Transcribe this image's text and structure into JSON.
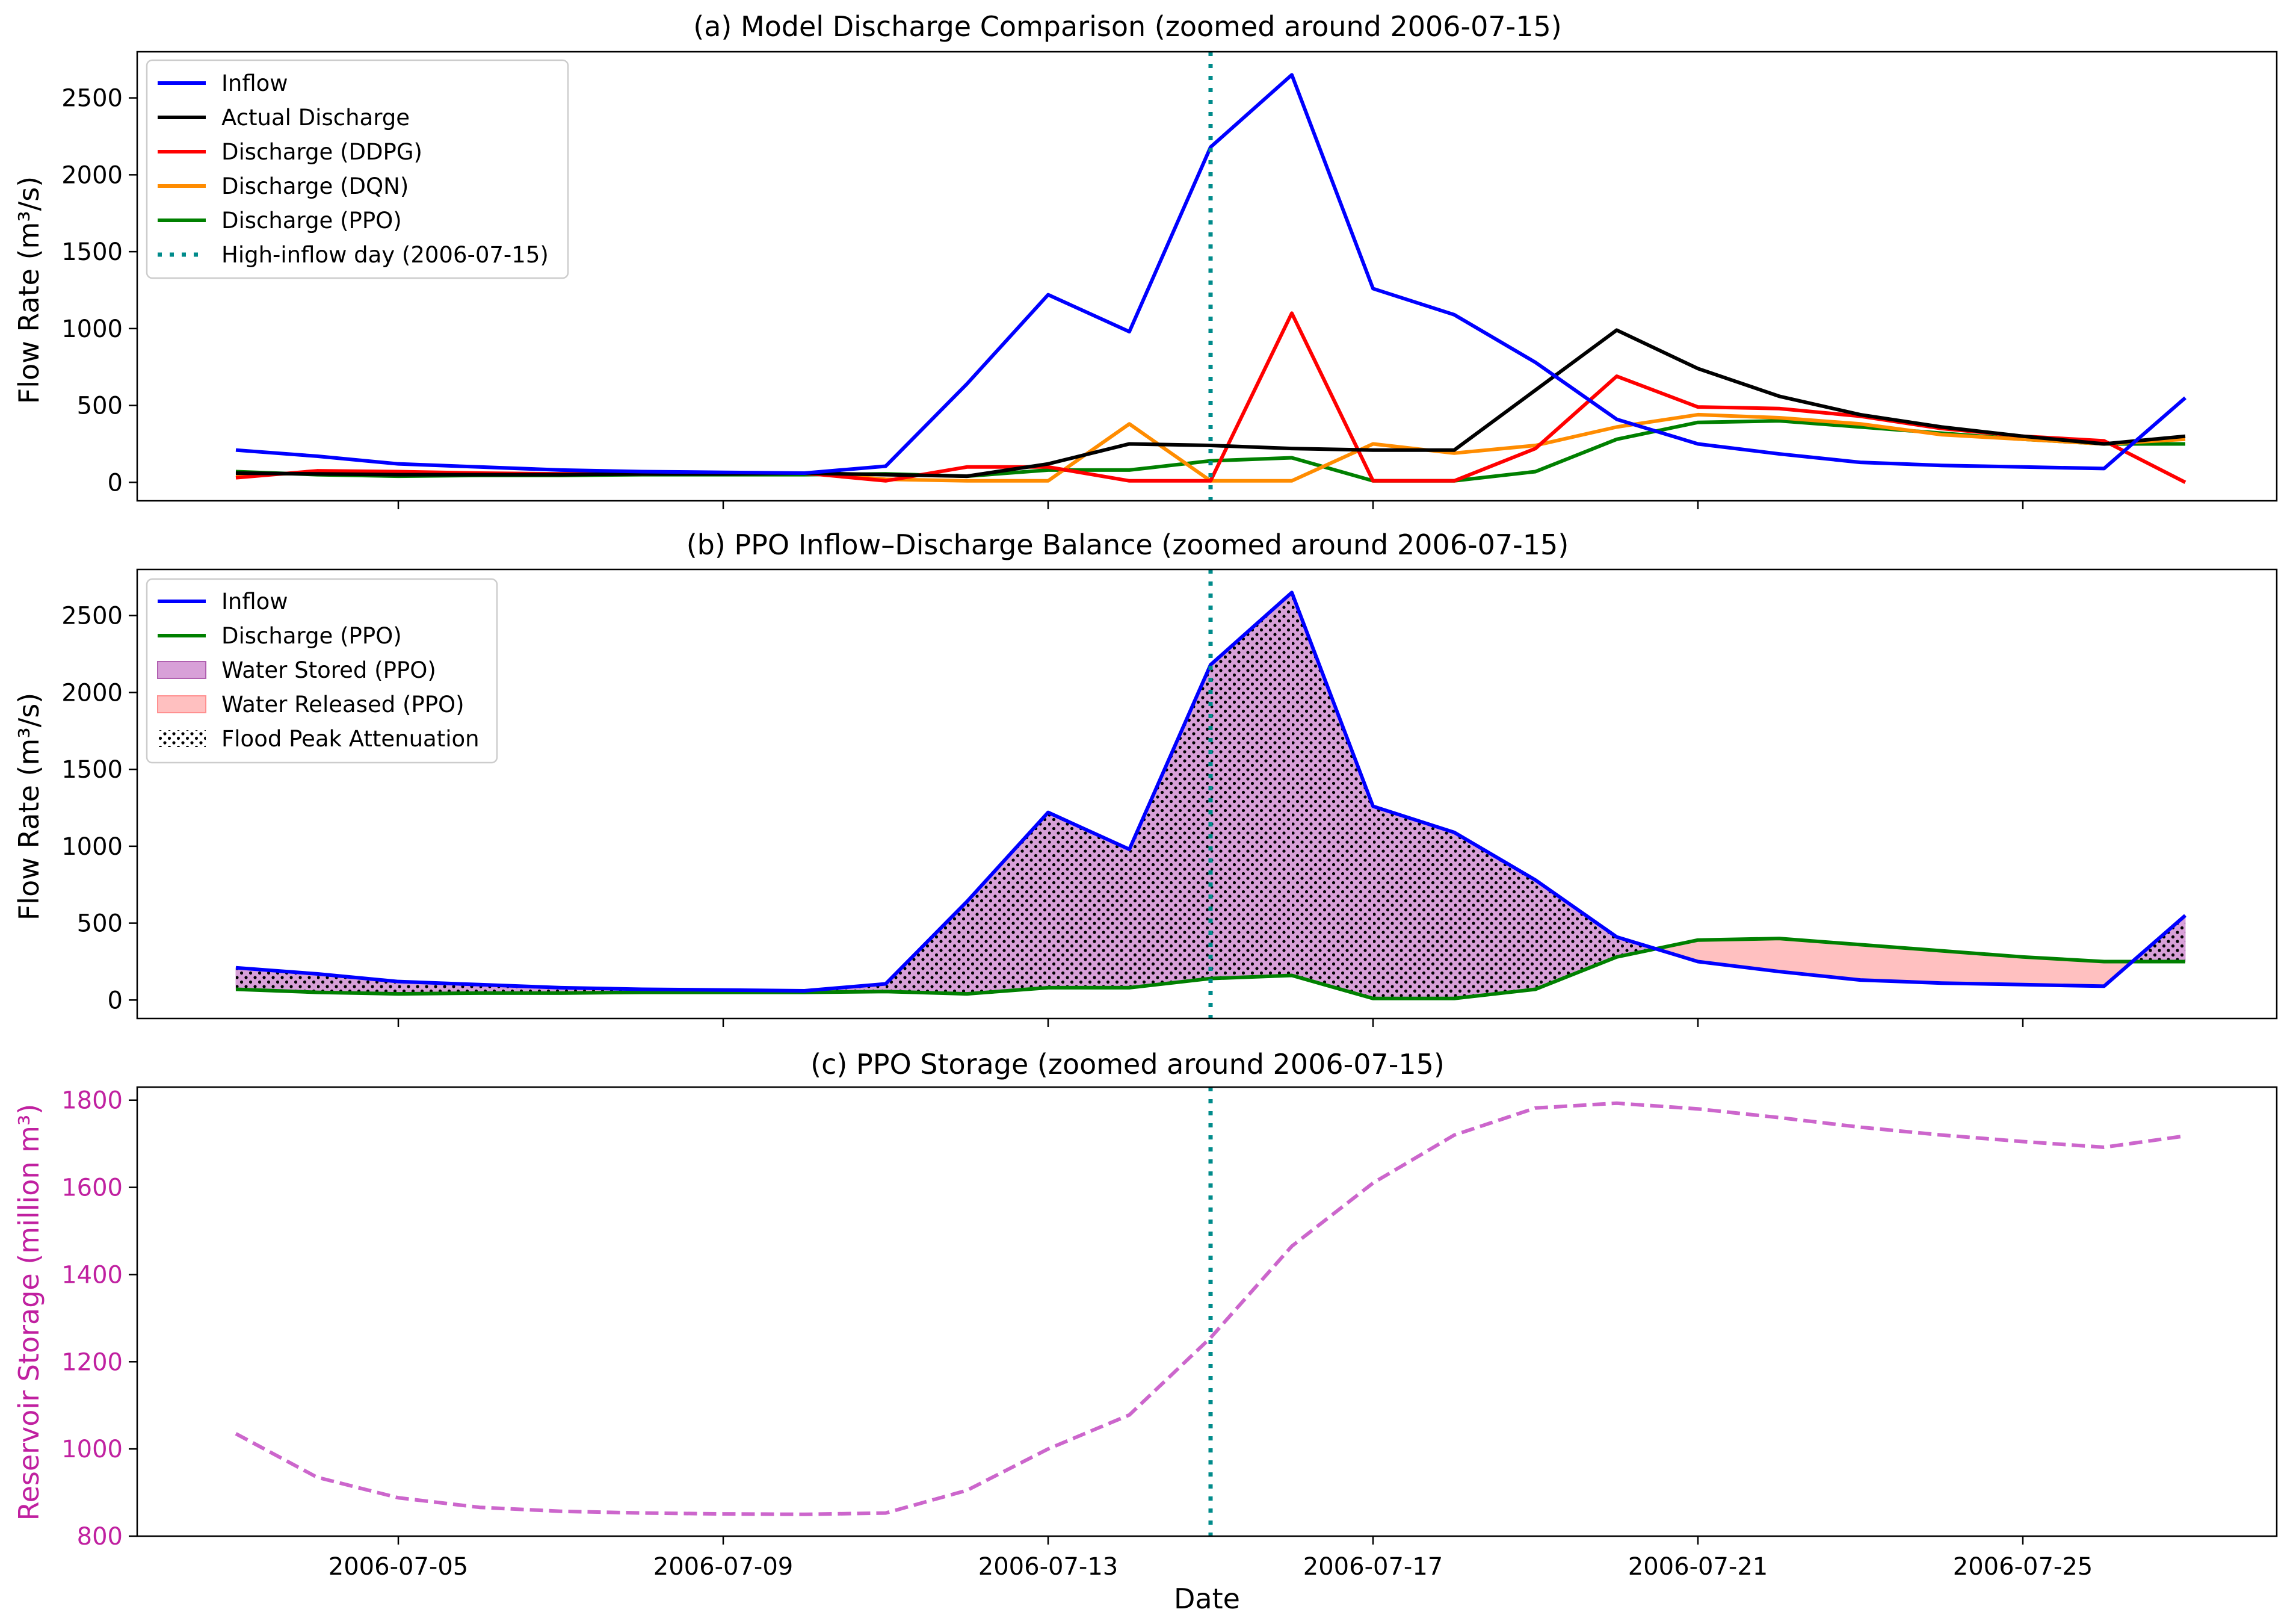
{
  "chart_data": [
    {
      "type": "line",
      "title": "(a) Model Discharge Comparison (zoomed around 2006-07-15)",
      "xlabel": "",
      "ylabel": "Flow Rate (m³/s)",
      "ylim": [
        -120,
        2800
      ],
      "yticks": [
        0,
        500,
        1000,
        1500,
        2000,
        2500
      ],
      "legend_position": "top-left",
      "x": [
        "2006-07-03",
        "2006-07-04",
        "2006-07-05",
        "2006-07-06",
        "2006-07-07",
        "2006-07-08",
        "2006-07-09",
        "2006-07-10",
        "2006-07-11",
        "2006-07-12",
        "2006-07-13",
        "2006-07-14",
        "2006-07-15",
        "2006-07-16",
        "2006-07-17",
        "2006-07-18",
        "2006-07-19",
        "2006-07-20",
        "2006-07-21",
        "2006-07-22",
        "2006-07-23",
        "2006-07-24",
        "2006-07-25",
        "2006-07-26",
        "2006-07-27"
      ],
      "series": [
        {
          "name": "Inflow",
          "color": "#0000ff",
          "values": [
            210,
            170,
            120,
            100,
            80,
            70,
            65,
            60,
            105,
            640,
            1220,
            980,
            2180,
            2650,
            1260,
            1090,
            780,
            410,
            250,
            185,
            130,
            110,
            100,
            90,
            550
          ]
        },
        {
          "name": "Actual Discharge",
          "color": "#000000",
          "values": [
            60,
            55,
            50,
            50,
            50,
            55,
            55,
            60,
            50,
            40,
            120,
            250,
            240,
            220,
            210,
            210,
            600,
            990,
            740,
            560,
            440,
            360,
            300,
            250,
            300
          ]
        },
        {
          "name": "Discharge (DDPG)",
          "color": "#ff0000",
          "values": [
            30,
            75,
            70,
            60,
            55,
            55,
            60,
            60,
            10,
            100,
            100,
            10,
            10,
            1100,
            10,
            10,
            220,
            690,
            490,
            480,
            430,
            350,
            300,
            270,
            0
          ]
        },
        {
          "name": "Discharge (DQN)",
          "color": "#ff8c00",
          "values": [
            50,
            60,
            60,
            55,
            55,
            55,
            60,
            60,
            20,
            10,
            10,
            380,
            10,
            10,
            250,
            190,
            240,
            360,
            440,
            420,
            380,
            310,
            280,
            250,
            280
          ]
        },
        {
          "name": "Discharge (PPO)",
          "color": "#008000",
          "values": [
            70,
            50,
            40,
            45,
            45,
            50,
            50,
            50,
            55,
            40,
            80,
            80,
            140,
            160,
            10,
            10,
            70,
            280,
            390,
            400,
            360,
            320,
            280,
            250,
            250
          ]
        }
      ],
      "markers": [
        {
          "name": "High-inflow day (2006-07-15)",
          "x": "2006-07-15",
          "color": "#008b8b"
        }
      ]
    },
    {
      "type": "area",
      "title": "(b) PPO Inflow–Discharge Balance (zoomed around 2006-07-15)",
      "xlabel": "",
      "ylabel": "Flow Rate (m³/s)",
      "ylim": [
        -120,
        2800
      ],
      "yticks": [
        0,
        500,
        1000,
        1500,
        2000,
        2500
      ],
      "legend_position": "top-left",
      "x": [
        "2006-07-03",
        "2006-07-04",
        "2006-07-05",
        "2006-07-06",
        "2006-07-07",
        "2006-07-08",
        "2006-07-09",
        "2006-07-10",
        "2006-07-11",
        "2006-07-12",
        "2006-07-13",
        "2006-07-14",
        "2006-07-15",
        "2006-07-16",
        "2006-07-17",
        "2006-07-18",
        "2006-07-19",
        "2006-07-20",
        "2006-07-21",
        "2006-07-22",
        "2006-07-23",
        "2006-07-24",
        "2006-07-25",
        "2006-07-26",
        "2006-07-27"
      ],
      "series": [
        {
          "name": "Inflow",
          "color": "#0000ff",
          "values": [
            210,
            170,
            120,
            100,
            80,
            70,
            65,
            60,
            105,
            640,
            1220,
            980,
            2180,
            2650,
            1260,
            1090,
            780,
            410,
            250,
            185,
            130,
            110,
            100,
            90,
            550
          ]
        },
        {
          "name": "Discharge (PPO)",
          "color": "#008000",
          "values": [
            70,
            50,
            40,
            45,
            45,
            50,
            50,
            50,
            55,
            40,
            80,
            80,
            140,
            160,
            10,
            10,
            70,
            280,
            390,
            400,
            360,
            320,
            280,
            250,
            250
          ]
        }
      ],
      "fills": [
        {
          "name": "Water Stored (PPO)",
          "color": "#d8a0d8"
        },
        {
          "name": "Water Released (PPO)",
          "color": "#ffc0c0"
        },
        {
          "name": "Flood Peak Attenuation",
          "color": "#000000"
        }
      ],
      "markers": [
        {
          "name": "High-inflow day (2006-07-15)",
          "x": "2006-07-15",
          "color": "#008b8b"
        }
      ]
    },
    {
      "type": "line",
      "title": "(c) PPO Storage (zoomed around 2006-07-15)",
      "xlabel": "Date",
      "ylabel": "Reservoir Storage (million m³)",
      "ylabel_color": "#c020a0",
      "ylim": [
        800,
        1830
      ],
      "yticks": [
        800,
        1000,
        1200,
        1400,
        1600,
        1800
      ],
      "x": [
        "2006-07-03",
        "2006-07-04",
        "2006-07-05",
        "2006-07-06",
        "2006-07-07",
        "2006-07-08",
        "2006-07-09",
        "2006-07-10",
        "2006-07-11",
        "2006-07-12",
        "2006-07-13",
        "2006-07-14",
        "2006-07-15",
        "2006-07-16",
        "2006-07-17",
        "2006-07-18",
        "2006-07-19",
        "2006-07-20",
        "2006-07-21",
        "2006-07-22",
        "2006-07-23",
        "2006-07-24",
        "2006-07-25",
        "2006-07-26",
        "2006-07-27"
      ],
      "series": [
        {
          "name": "Storage (PPO)",
          "color": "#cc66cc",
          "values": [
            1035,
            935,
            888,
            866,
            857,
            853,
            851,
            850,
            853,
            905,
            1000,
            1078,
            1255,
            1465,
            1610,
            1720,
            1782,
            1793,
            1780,
            1760,
            1738,
            1720,
            1705,
            1692,
            1718
          ]
        }
      ],
      "markers": [
        {
          "name": "High-inflow day (2006-07-15)",
          "x": "2006-07-15",
          "color": "#008b8b"
        }
      ],
      "xticks": [
        "2006-07-05",
        "2006-07-09",
        "2006-07-13",
        "2006-07-17",
        "2006-07-21",
        "2006-07-25"
      ]
    }
  ]
}
